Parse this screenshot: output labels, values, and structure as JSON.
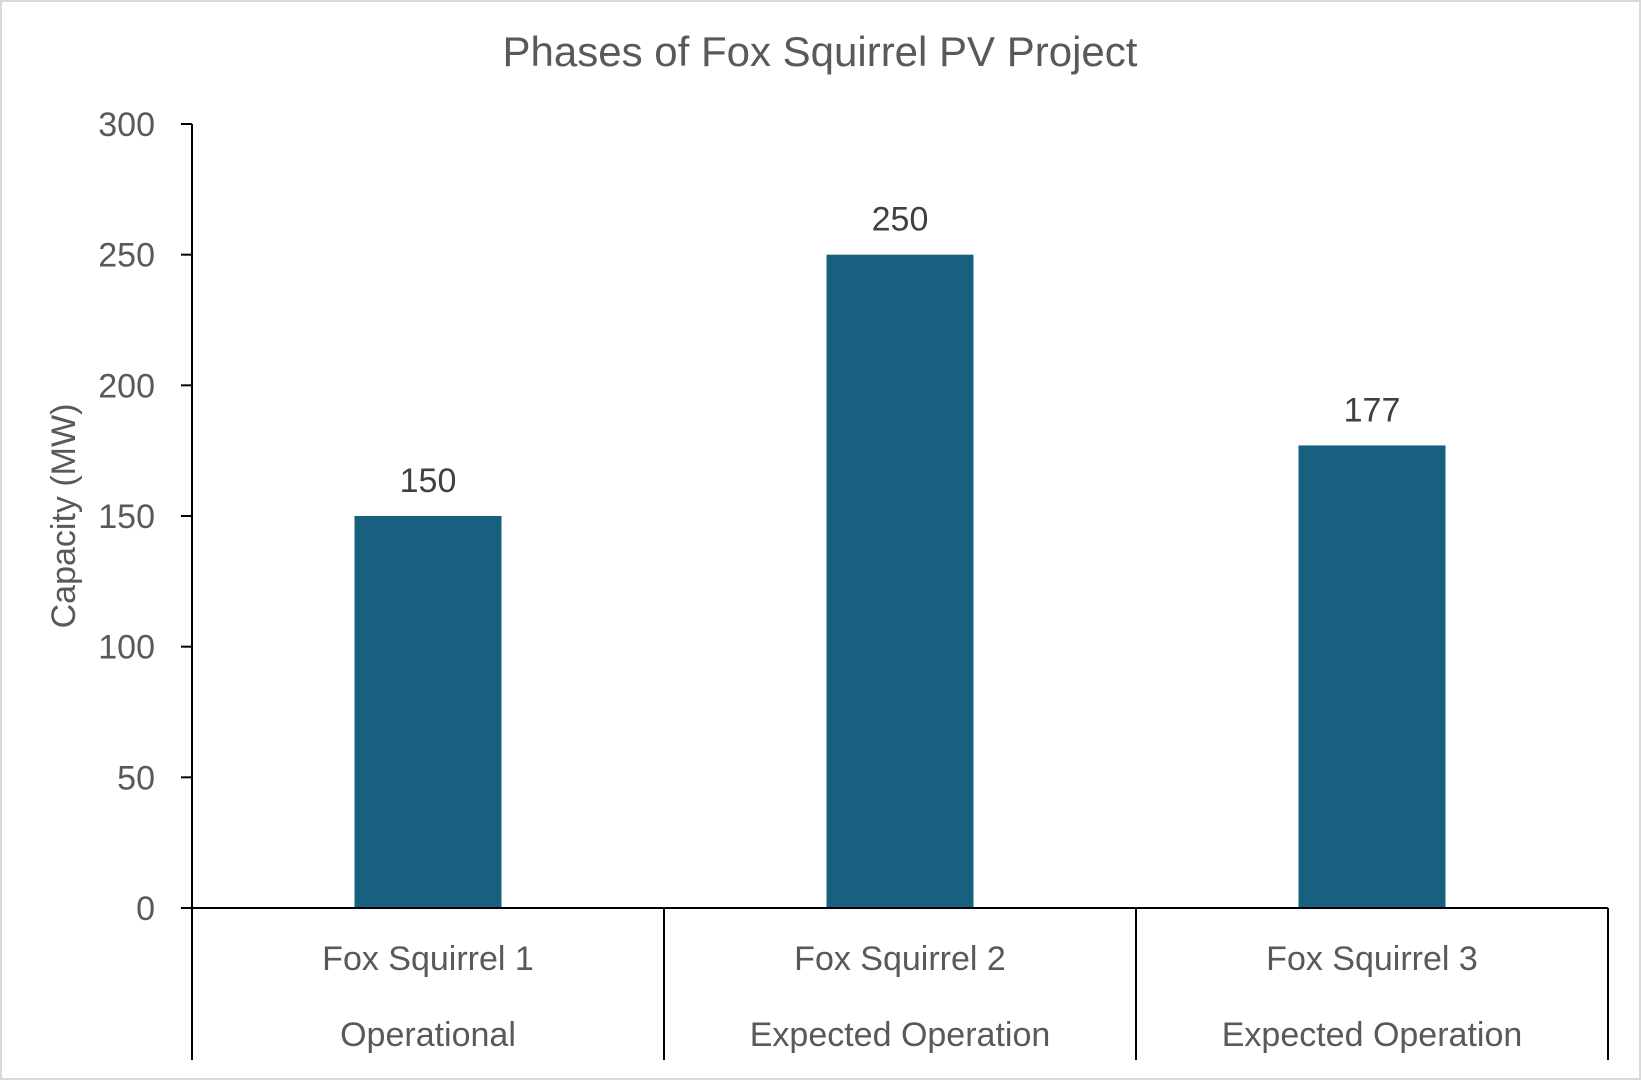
{
  "chart_data": {
    "type": "bar",
    "title": "Phases of Fox Squirrel PV Project",
    "xlabel": "",
    "ylabel": "Capacity (MW)",
    "ylim": [
      0,
      300
    ],
    "yticks": [
      0,
      50,
      100,
      150,
      200,
      250,
      300
    ],
    "categories": [
      {
        "name": "Fox Squirrel 1",
        "status": "Operational"
      },
      {
        "name": "Fox Squirrel 2",
        "status": "Expected Operation"
      },
      {
        "name": "Fox Squirrel 3",
        "status": "Expected Operation"
      }
    ],
    "values": [
      150,
      250,
      177
    ],
    "data_labels": [
      "150",
      "250",
      "177"
    ],
    "bar_color": "#17607F",
    "grid": false,
    "legend": "none"
  }
}
